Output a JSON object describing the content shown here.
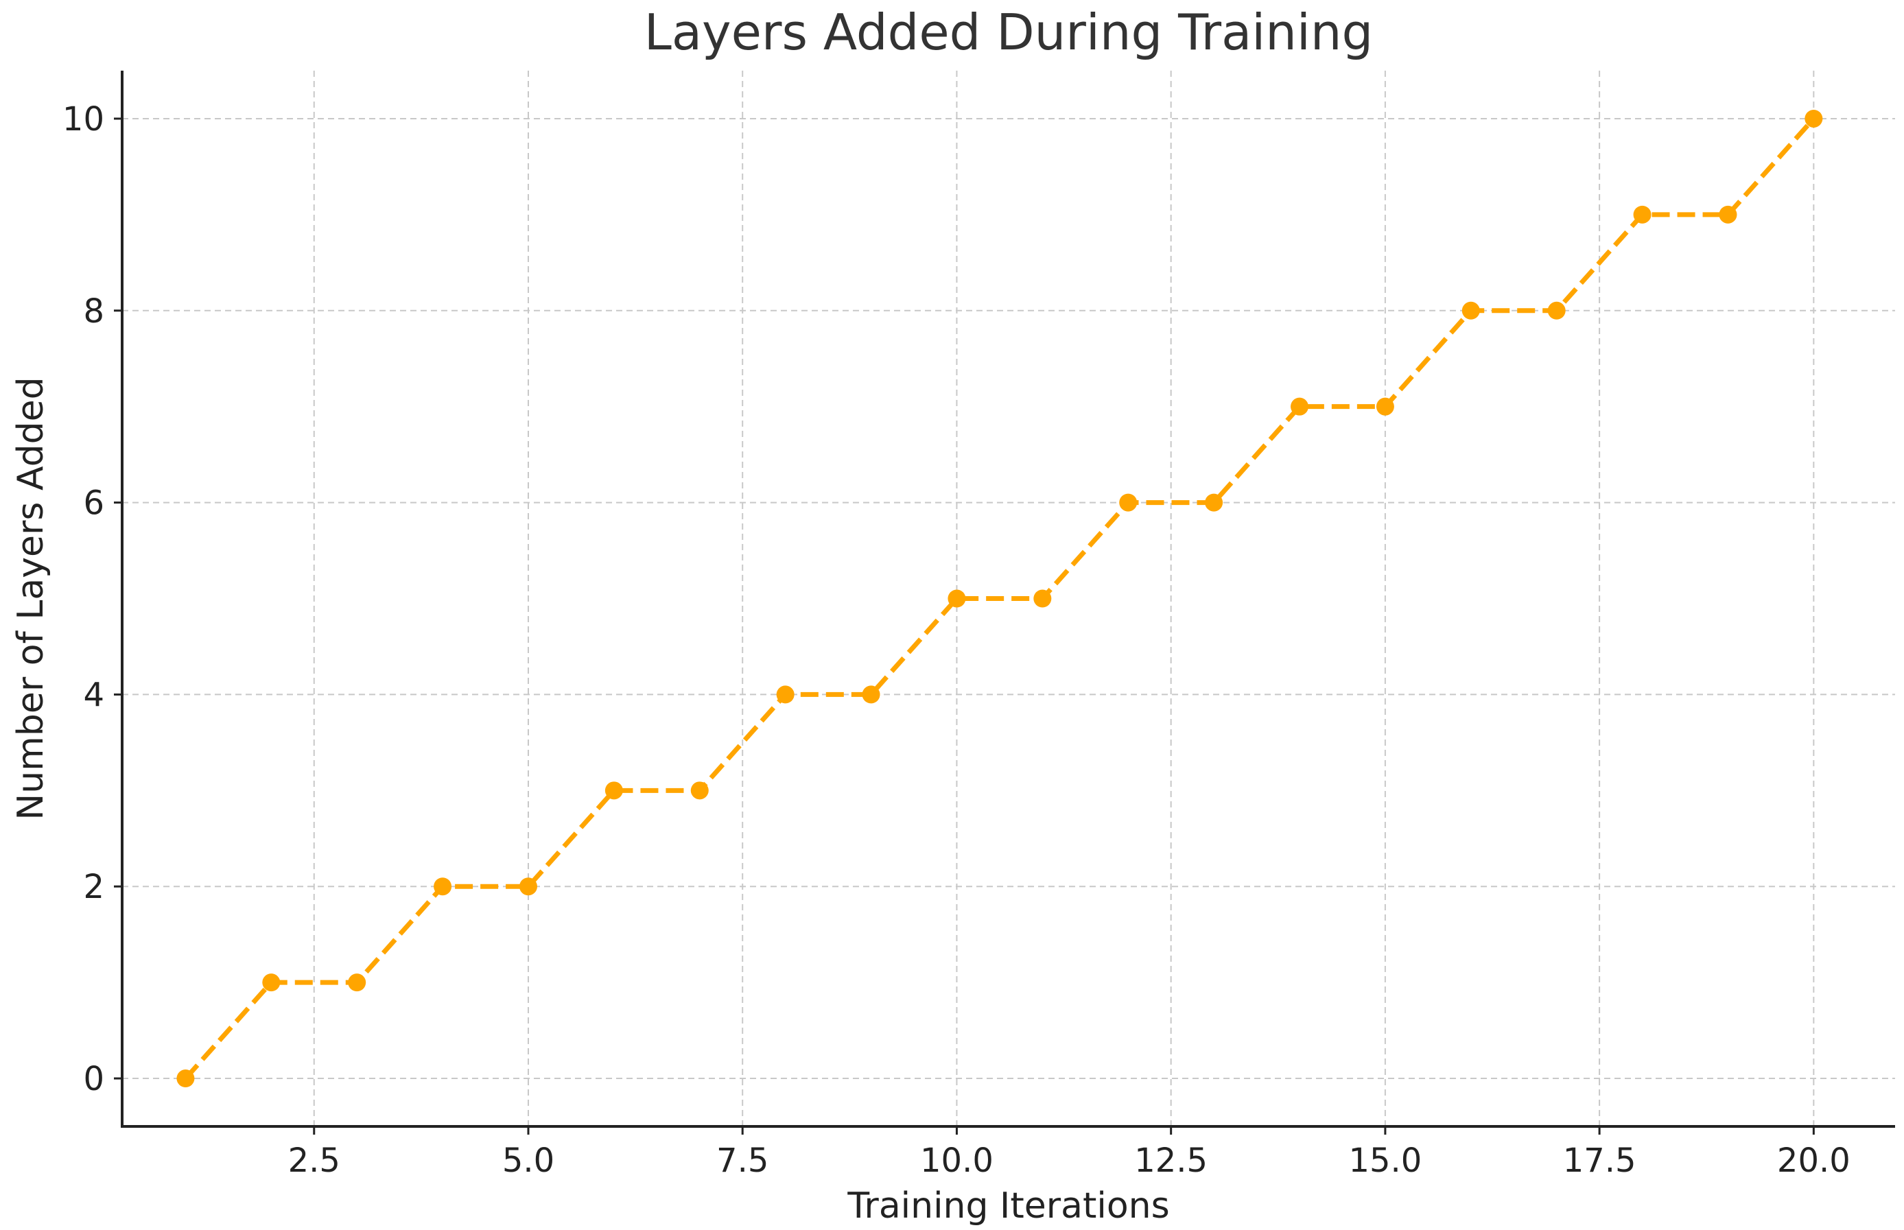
{
  "chart_data": {
    "type": "line",
    "title": "Layers Added During Training",
    "xlabel": "Training Iterations",
    "ylabel": "Number of Layers Added",
    "xlim": [
      0.26,
      20.95
    ],
    "ylim": [
      -0.5,
      10.5
    ],
    "x_ticks": [
      2.5,
      5.0,
      7.5,
      10.0,
      12.5,
      15.0,
      17.5,
      20.0
    ],
    "x_tick_labels": [
      "2.5",
      "5.0",
      "7.5",
      "10.0",
      "12.5",
      "15.0",
      "17.5",
      "20.0"
    ],
    "y_ticks": [
      0,
      2,
      4,
      6,
      8,
      10
    ],
    "y_tick_labels": [
      "0",
      "2",
      "4",
      "6",
      "8",
      "10"
    ],
    "grid": true,
    "legend": "none",
    "series": [
      {
        "color": "#FFA500",
        "line_style": "dashed",
        "marker": "circle",
        "x": [
          1,
          2,
          3,
          4,
          5,
          6,
          7,
          8,
          9,
          10,
          11,
          12,
          13,
          14,
          15,
          16,
          17,
          18,
          19,
          20
        ],
        "y": [
          0,
          1,
          1,
          2,
          2,
          3,
          3,
          4,
          4,
          5,
          5,
          6,
          6,
          7,
          7,
          8,
          8,
          9,
          9,
          10
        ]
      }
    ]
  }
}
